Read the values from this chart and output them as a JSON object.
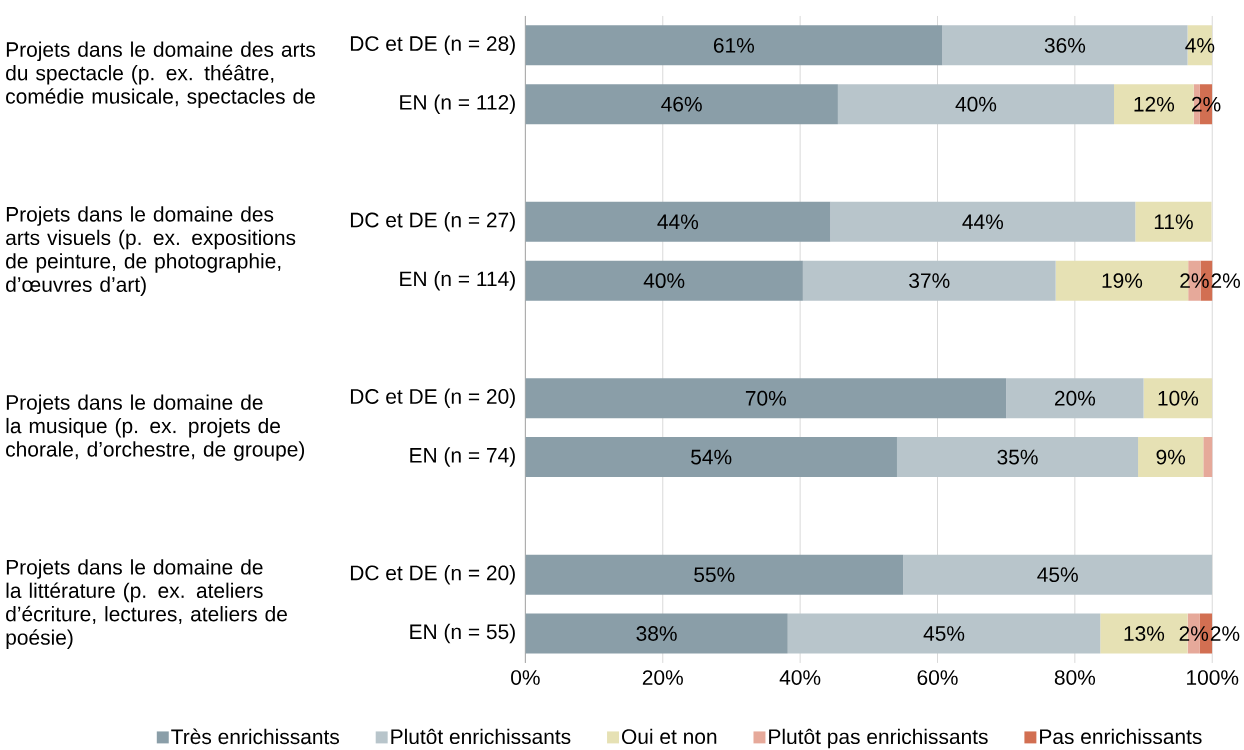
{
  "chart_data": {
    "type": "bar",
    "orientation": "horizontal",
    "stacked": true,
    "categories": [
      "DC et DE (n = 28)",
      "EN (n = 112)",
      "DC et DE (n = 27)",
      "EN (n = 114)",
      "DC et DE (n = 20)",
      "EN (n = 74)",
      "DC et DE (n = 20)",
      "EN (n = 55)"
    ],
    "annotations": [
      "Projets dans le domaine des arts du spectacle (p. ex. théâtre, comédie musicale, spectacles de",
      "Projets dans le domaine des arts visuels (p. ex. expositions de peinture, de photographie, d’œuvres d’art)",
      "Projets dans le domaine de la musique (p. ex. projets de chorale, d’orchestre, de groupe)",
      "Projets dans le domaine de la littérature (p. ex. ateliers d’écriture, lectures, ateliers de poésie)"
    ],
    "series": [
      {
        "name": "Très enrichissants",
        "color": "#8a9ea8",
        "values": [
          60.7,
          45.5,
          44.4,
          40.4,
          70,
          54.1,
          55,
          38.2
        ],
        "value_labels": [
          "61%",
          "46%",
          "44%",
          "40%",
          "70%",
          "54%",
          "55%",
          "38%"
        ]
      },
      {
        "name": "Plutôt enrichissants",
        "color": "#b8c5cb",
        "values": [
          35.7,
          40.2,
          44.4,
          36.8,
          20,
          35.1,
          45,
          45.5
        ],
        "value_labels": [
          "36%",
          "40%",
          "44%",
          "37%",
          "20%",
          "35%",
          "45%",
          "45%"
        ]
      },
      {
        "name": "Oui et non",
        "color": "#e6e1b4",
        "values": [
          3.6,
          11.6,
          11.1,
          19.3,
          10,
          9.5,
          null,
          12.7
        ],
        "value_labels": [
          "4%",
          "12%",
          "11%",
          "19%",
          "10%",
          "9%",
          null,
          "13%"
        ]
      },
      {
        "name": "Plutôt pas enrichissants",
        "color": "#e6a99a",
        "values": [
          null,
          0.9,
          null,
          1.8,
          null,
          1.4,
          null,
          1.8
        ],
        "value_labels": [
          null,
          null,
          null,
          "2%",
          null,
          null,
          null,
          "2%"
        ]
      },
      {
        "name": "Pas enrichissants",
        "color": "#d26f52",
        "values": [
          null,
          1.8,
          null,
          1.8,
          null,
          null,
          null,
          1.8
        ],
        "value_labels": [
          null,
          "2%",
          null,
          "2%",
          null,
          null,
          null,
          "2%"
        ]
      }
    ],
    "xlim": [
      0,
      100
    ],
    "xticks": [
      {
        "value": 0,
        "label": "0%"
      },
      {
        "value": 20,
        "label": "20%"
      },
      {
        "value": 40,
        "label": "40%"
      },
      {
        "value": 60,
        "label": "60%"
      },
      {
        "value": 80,
        "label": "80%"
      },
      {
        "value": 100,
        "label": "100%"
      }
    ],
    "grid": "x",
    "legend": "bottom"
  }
}
